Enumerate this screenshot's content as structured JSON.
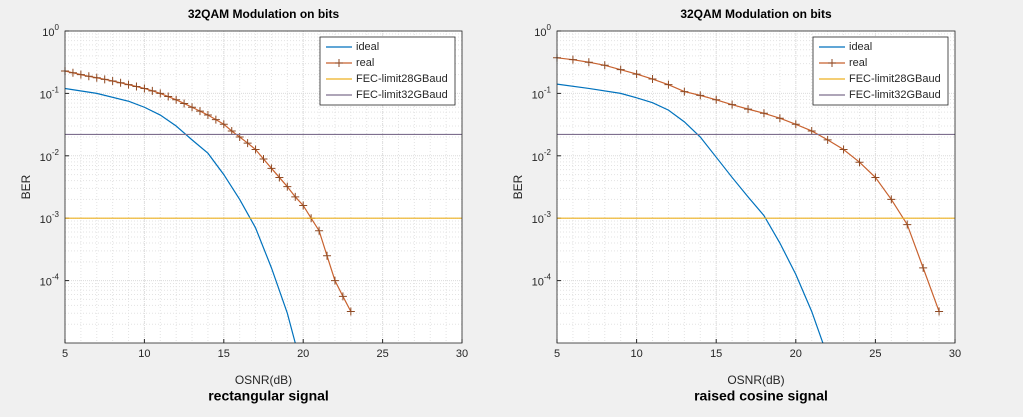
{
  "chart_data": [
    {
      "type": "line",
      "title": "32QAM Modulation on bits",
      "xlabel": "OSNR(dB)",
      "ylabel": "BER",
      "caption": "rectangular signal",
      "xlim": [
        5,
        30
      ],
      "xticks": [
        5,
        10,
        15,
        20,
        25,
        30
      ],
      "ylim": [
        1e-05,
        1
      ],
      "ylog": true,
      "yticks": [
        {
          "value": 1,
          "label": "10",
          "exponent": "0"
        },
        {
          "value": 0.1,
          "label": "10",
          "exponent": "-1"
        },
        {
          "value": 0.01,
          "label": "10",
          "exponent": "-2"
        },
        {
          "value": 0.001,
          "label": "10",
          "exponent": "-3"
        },
        {
          "value": 0.0001,
          "label": "10",
          "exponent": "-4"
        }
      ],
      "grid": true,
      "minor_grid": true,
      "legend": "upper right",
      "series": [
        {
          "name": "ideal",
          "color": "#0072bd",
          "x": [
            5,
            7,
            9,
            10,
            11,
            12,
            13,
            14,
            15,
            16,
            17,
            18,
            19,
            19.5
          ],
          "values": [
            0.12,
            0.1,
            0.075,
            0.06,
            0.045,
            0.03,
            0.018,
            0.011,
            0.005,
            0.002,
            0.0007,
            0.00016,
            3e-05,
            1e-05
          ]
        },
        {
          "name": "real",
          "color": "#c8622f",
          "marker": "+",
          "x": [
            5,
            5.5,
            6,
            6.5,
            7,
            7.5,
            8,
            8.5,
            9,
            9.5,
            10,
            10.5,
            11,
            11.5,
            12,
            12.5,
            13,
            13.5,
            14,
            14.5,
            15,
            15.5,
            16,
            16.5,
            17,
            17.5,
            18,
            18.5,
            19,
            19.5,
            20,
            20.5,
            21,
            21.5,
            22,
            22.5,
            23
          ],
          "values": [
            0.229,
            0.214,
            0.2,
            0.188,
            0.178,
            0.168,
            0.158,
            0.148,
            0.138,
            0.129,
            0.12,
            0.11,
            0.1,
            0.089,
            0.079,
            0.069,
            0.06,
            0.052,
            0.045,
            0.038,
            0.032,
            0.025,
            0.02,
            0.016,
            0.0126,
            0.0089,
            0.0063,
            0.0045,
            0.0032,
            0.0022,
            0.0016,
            0.001,
            0.00063,
            0.00025,
            0.0001,
            5.6e-05,
            3.2e-05
          ]
        },
        {
          "name": "FEC-limit28GBaud",
          "color": "#edb120",
          "x": [
            5,
            30
          ],
          "values": [
            0.001,
            0.001
          ]
        },
        {
          "name": "FEC-limit32GBaud",
          "color": "#7e6f8e",
          "x": [
            5,
            30
          ],
          "values": [
            0.022,
            0.022
          ]
        }
      ]
    },
    {
      "type": "line",
      "title": "32QAM Modulation on bits",
      "xlabel": "OSNR(dB)",
      "ylabel": "BER",
      "caption": "raised cosine signal",
      "xlim": [
        5,
        30
      ],
      "xticks": [
        5,
        10,
        15,
        20,
        25,
        30
      ],
      "ylim": [
        1e-05,
        1
      ],
      "ylog": true,
      "yticks": [
        {
          "value": 1,
          "label": "10",
          "exponent": "0"
        },
        {
          "value": 0.1,
          "label": "10",
          "exponent": "-1"
        },
        {
          "value": 0.01,
          "label": "10",
          "exponent": "-2"
        },
        {
          "value": 0.001,
          "label": "10",
          "exponent": "-3"
        },
        {
          "value": 0.0001,
          "label": "10",
          "exponent": "-4"
        }
      ],
      "grid": true,
      "minor_grid": true,
      "legend": "upper right",
      "series": [
        {
          "name": "ideal",
          "color": "#0072bd",
          "x": [
            5,
            7,
            9,
            10,
            11,
            12,
            13,
            14,
            15,
            16,
            17,
            18,
            19,
            20,
            21,
            21.7
          ],
          "values": [
            0.141,
            0.12,
            0.1,
            0.085,
            0.071,
            0.054,
            0.035,
            0.02,
            0.0095,
            0.0045,
            0.0022,
            0.0011,
            0.0004,
            0.000126,
            3.2e-05,
            1e-05
          ]
        },
        {
          "name": "real",
          "color": "#c8622f",
          "marker": "+",
          "x": [
            5,
            6,
            7,
            8,
            9,
            10,
            11,
            12,
            13,
            14,
            15,
            16,
            17,
            18,
            19,
            20,
            21,
            22,
            23,
            24,
            25,
            26,
            27,
            28,
            29
          ],
          "values": [
            0.372,
            0.347,
            0.316,
            0.282,
            0.24,
            0.204,
            0.17,
            0.138,
            0.107,
            0.093,
            0.079,
            0.066,
            0.056,
            0.048,
            0.04,
            0.032,
            0.025,
            0.018,
            0.0126,
            0.0079,
            0.0045,
            0.002,
            0.00079,
            0.00016,
            3.2e-05
          ]
        },
        {
          "name": "FEC-limit28GBaud",
          "color": "#edb120",
          "x": [
            5,
            30
          ],
          "values": [
            0.001,
            0.001
          ]
        },
        {
          "name": "FEC-limit32GBaud",
          "color": "#7e6f8e",
          "x": [
            5,
            30
          ],
          "values": [
            0.022,
            0.022
          ]
        }
      ]
    }
  ]
}
